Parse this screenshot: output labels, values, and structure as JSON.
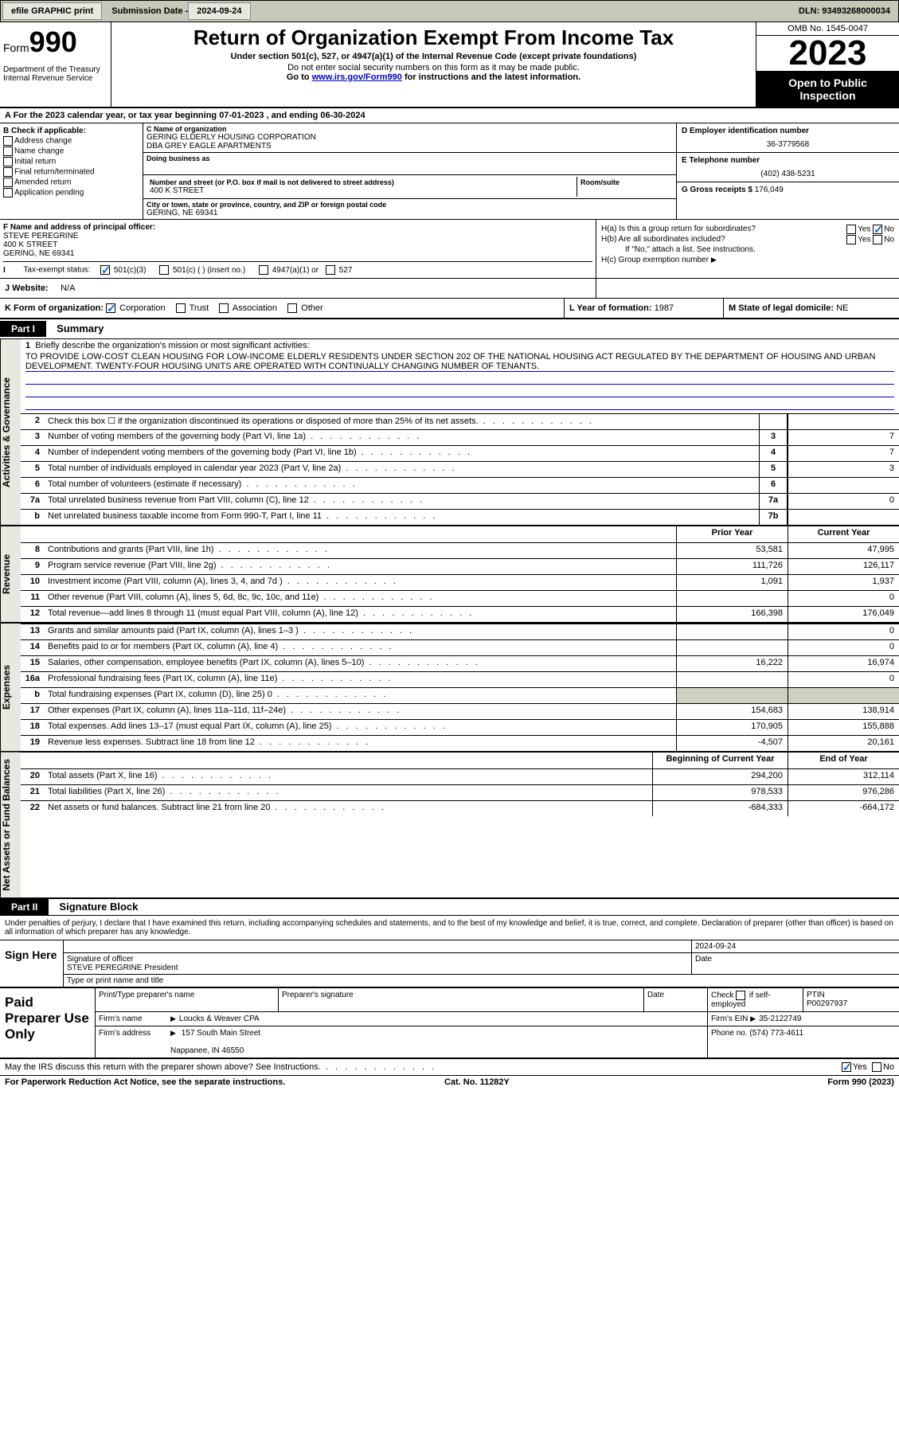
{
  "topbar": {
    "efile": "efile GRAPHIC print",
    "submission_label": "Submission Date - ",
    "submission_date": "2024-09-24",
    "dln_label": "DLN: ",
    "dln": "93493268000034"
  },
  "header": {
    "form_prefix": "Form",
    "form_number": "990",
    "title": "Return of Organization Exempt From Income Tax",
    "subtitle": "Under section 501(c), 527, or 4947(a)(1) of the Internal Revenue Code (except private foundations)",
    "warning": "Do not enter social security numbers on this form as it may be made public.",
    "goto_prefix": "Go to ",
    "goto_link": "www.irs.gov/Form990",
    "goto_suffix": " for instructions and the latest information.",
    "dept": "Department of the Treasury\nInternal Revenue Service",
    "omb": "OMB No. 1545-0047",
    "year": "2023",
    "inspect": "Open to Public Inspection"
  },
  "line_a": {
    "text": "A  For the 2023 calendar year, or tax year beginning 07-01-2023    , and ending 06-30-2024"
  },
  "section_b": {
    "label": "B Check if applicable:",
    "opts": [
      "Address change",
      "Name change",
      "Initial return",
      "Final return/terminated",
      "Amended return",
      "Application pending"
    ]
  },
  "section_c": {
    "name_label": "C Name of organization",
    "name": "GERING ELDERLY HOUSING CORPORATION",
    "dba": "DBA GREY EAGLE APARTMENTS",
    "dba_label": "Doing business as",
    "addr_label": "Number and street (or P.O. box if mail is not delivered to street address)",
    "room_label": "Room/suite",
    "addr": "400 K STREET",
    "city_label": "City or town, state or province, country, and ZIP or foreign postal code",
    "city": "GERING, NE  69341"
  },
  "section_d": {
    "label": "D Employer identification number",
    "value": "36-3779568"
  },
  "section_e": {
    "label": "E Telephone number",
    "value": "(402) 438-5231"
  },
  "section_g": {
    "label": "G Gross receipts $",
    "value": "176,049"
  },
  "section_f": {
    "label": "F Name and address of principal officer:",
    "name": "STEVE PEREGRINE",
    "addr": "400 K STREET",
    "city": "GERING, NE  69341"
  },
  "section_h": {
    "ha": "H(a)  Is this a group return for subordinates?",
    "hb": "H(b)  Are all subordinates included?",
    "hb_note": "If \"No,\" attach a list. See instructions.",
    "hc": "H(c)  Group exemption number",
    "yes": "Yes",
    "no": "No"
  },
  "section_i": {
    "label": "Tax-exempt status:",
    "o1": "501(c)(3)",
    "o2": "501(c) (  ) (insert no.)",
    "o3": "4947(a)(1) or",
    "o4": "527"
  },
  "section_j": {
    "label": "J    Website:",
    "value": "N/A"
  },
  "section_k": {
    "label": "K Form of organization:",
    "corp": "Corporation",
    "trust": "Trust",
    "assoc": "Association",
    "other": "Other",
    "l_label": "L Year of formation:",
    "l_value": "1987",
    "m_label": "M State of legal domicile:",
    "m_value": "NE"
  },
  "part1": {
    "label": "Part I",
    "title": "Summary"
  },
  "sidetabs": [
    "Activities & Governance",
    "Revenue",
    "Expenses",
    "Net Assets or Fund Balances"
  ],
  "mission": {
    "label": "Briefly describe the organization's mission or most significant activities:",
    "text": "TO PROVIDE LOW-COST CLEAN HOUSING FOR LOW-INCOME ELDERLY RESIDENTS UNDER SECTION 202 OF THE NATIONAL HOUSING ACT REGULATED BY THE DEPARTMENT OF HOUSING AND URBAN DEVELOPMENT. TWENTY-FOUR HOUSING UNITS ARE OPERATED WITH CONTINUALLY CHANGING NUMBER OF TENANTS."
  },
  "gov_rows": [
    {
      "n": "2",
      "desc": "Check this box ☐ if the organization discontinued its operations or disposed of more than 25% of its net assets.",
      "ref": "",
      "val": ""
    },
    {
      "n": "3",
      "desc": "Number of voting members of the governing body (Part VI, line 1a)",
      "ref": "3",
      "val": "7"
    },
    {
      "n": "4",
      "desc": "Number of independent voting members of the governing body (Part VI, line 1b)",
      "ref": "4",
      "val": "7"
    },
    {
      "n": "5",
      "desc": "Total number of individuals employed in calendar year 2023 (Part V, line 2a)",
      "ref": "5",
      "val": "3"
    },
    {
      "n": "6",
      "desc": "Total number of volunteers (estimate if necessary)",
      "ref": "6",
      "val": ""
    },
    {
      "n": "7a",
      "desc": "Total unrelated business revenue from Part VIII, column (C), line 12",
      "ref": "7a",
      "val": "0"
    },
    {
      "n": "b",
      "desc": "Net unrelated business taxable income from Form 990-T, Part I, line 11",
      "ref": "7b",
      "val": ""
    }
  ],
  "col_hdrs": {
    "prior": "Prior Year",
    "current": "Current Year",
    "begin": "Beginning of Current Year",
    "end": "End of Year"
  },
  "rev_rows": [
    {
      "n": "8",
      "desc": "Contributions and grants (Part VIII, line 1h)",
      "py": "53,581",
      "cy": "47,995"
    },
    {
      "n": "9",
      "desc": "Program service revenue (Part VIII, line 2g)",
      "py": "111,726",
      "cy": "126,117"
    },
    {
      "n": "10",
      "desc": "Investment income (Part VIII, column (A), lines 3, 4, and 7d )",
      "py": "1,091",
      "cy": "1,937"
    },
    {
      "n": "11",
      "desc": "Other revenue (Part VIII, column (A), lines 5, 6d, 8c, 9c, 10c, and 11e)",
      "py": "",
      "cy": "0"
    },
    {
      "n": "12",
      "desc": "Total revenue—add lines 8 through 11 (must equal Part VIII, column (A), line 12)",
      "py": "166,398",
      "cy": "176,049"
    }
  ],
  "exp_rows": [
    {
      "n": "13",
      "desc": "Grants and similar amounts paid (Part IX, column (A), lines 1–3 )",
      "py": "",
      "cy": "0"
    },
    {
      "n": "14",
      "desc": "Benefits paid to or for members (Part IX, column (A), line 4)",
      "py": "",
      "cy": "0"
    },
    {
      "n": "15",
      "desc": "Salaries, other compensation, employee benefits (Part IX, column (A), lines 5–10)",
      "py": "16,222",
      "cy": "16,974"
    },
    {
      "n": "16a",
      "desc": "Professional fundraising fees (Part IX, column (A), line 11e)",
      "py": "",
      "cy": "0"
    },
    {
      "n": "b",
      "desc": "Total fundraising expenses (Part IX, column (D), line 25) 0",
      "py": "GREY",
      "cy": "GREY"
    },
    {
      "n": "17",
      "desc": "Other expenses (Part IX, column (A), lines 11a–11d, 11f–24e)",
      "py": "154,683",
      "cy": "138,914"
    },
    {
      "n": "18",
      "desc": "Total expenses. Add lines 13–17 (must equal Part IX, column (A), line 25)",
      "py": "170,905",
      "cy": "155,888"
    },
    {
      "n": "19",
      "desc": "Revenue less expenses. Subtract line 18 from line 12",
      "py": "-4,507",
      "cy": "20,161"
    }
  ],
  "net_rows": [
    {
      "n": "20",
      "desc": "Total assets (Part X, line 16)",
      "py": "294,200",
      "cy": "312,114"
    },
    {
      "n": "21",
      "desc": "Total liabilities (Part X, line 26)",
      "py": "978,533",
      "cy": "976,286"
    },
    {
      "n": "22",
      "desc": "Net assets or fund balances. Subtract line 21 from line 20",
      "py": "-684,333",
      "cy": "-664,172"
    }
  ],
  "part2": {
    "label": "Part II",
    "title": "Signature Block"
  },
  "sig": {
    "perjury": "Under penalties of perjury, I declare that I have examined this return, including accompanying schedules and statements, and to the best of my knowledge and belief, it is true, correct, and complete. Declaration of preparer (other than officer) is based on all information of which preparer has any knowledge.",
    "sign_here": "Sign Here",
    "sig_officer": "Signature of officer",
    "officer_name": "STEVE PEREGRINE President",
    "type_name": "Type or print name and title",
    "date_label": "Date",
    "date": "2024-09-24"
  },
  "prep": {
    "title": "Paid Preparer Use Only",
    "h1": "Print/Type preparer's name",
    "h2": "Preparer's signature",
    "h3": "Date",
    "h4_a": "Check",
    "h4_b": "if self-employed",
    "h5": "PTIN",
    "ptin": "P00297937",
    "firm_label": "Firm's name",
    "firm": "Loucks & Weaver CPA",
    "ein_label": "Firm's EIN",
    "ein": "35-2122749",
    "addr_label": "Firm's address",
    "addr1": "157 South Main Street",
    "addr2": "Nappanee, IN  46550",
    "phone_label": "Phone no.",
    "phone": "(574) 773-4611"
  },
  "discuss": {
    "text": "May the IRS discuss this return with the preparer shown above? See Instructions.",
    "yes": "Yes",
    "no": "No"
  },
  "footer": {
    "pra": "For Paperwork Reduction Act Notice, see the separate instructions.",
    "cat": "Cat. No. 11282Y",
    "form": "Form 990 (2023)"
  }
}
